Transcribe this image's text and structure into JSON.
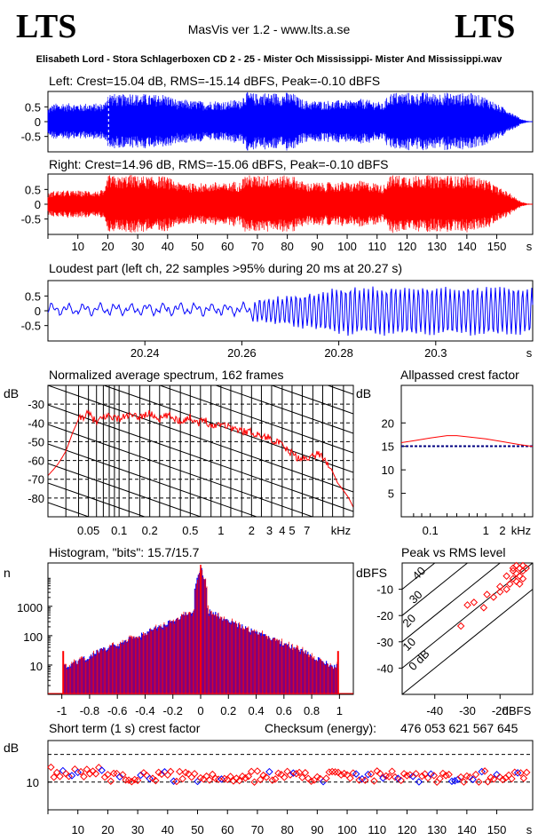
{
  "header": {
    "logo_left": "LTS",
    "logo_right": "LTS",
    "version": "MasVis ver 1.2 - www.lts.a.se",
    "filename": "Elisabeth Lord - Stora Schlagerboxen CD 2 - 25 - Mister Och Mississippi- Mister And Mississippi.wav"
  },
  "colors": {
    "left": "#0000ff",
    "right": "#ff0000",
    "dash": "#000080",
    "axis": "#000000"
  },
  "chart_data": [
    {
      "id": "left",
      "type": "area",
      "title": "Left: Crest=15.04 dB, RMS=-15.14 dBFS, Peak=-0.10 dBFS",
      "ylim": [
        -1,
        1
      ],
      "yticks": [
        "0.5",
        "0",
        "-0.5"
      ],
      "xlim": [
        0,
        162
      ],
      "envelope_t": [
        0,
        1,
        2,
        3,
        4,
        5,
        6,
        7,
        8,
        9,
        10,
        11,
        12,
        13,
        14,
        15,
        16,
        17,
        18,
        19,
        20,
        22,
        24,
        26,
        28,
        30,
        32,
        34,
        36,
        38,
        40,
        42,
        44,
        46,
        48,
        50,
        52,
        54,
        56,
        58,
        60,
        62,
        64,
        66,
        68,
        70,
        72,
        74,
        76,
        78,
        80,
        82,
        84,
        86,
        88,
        90,
        92,
        94,
        96,
        98,
        100,
        102,
        104,
        106,
        108,
        110,
        112,
        114,
        116,
        118,
        120,
        122,
        124,
        126,
        128,
        130,
        132,
        134,
        136,
        138,
        140,
        142,
        144,
        146,
        148,
        150,
        152,
        154,
        156,
        158,
        160,
        162
      ],
      "envelope": [
        0.45,
        0.55,
        0.6,
        0.62,
        0.58,
        0.65,
        0.6,
        0.62,
        0.66,
        0.6,
        0.62,
        0.58,
        0.6,
        0.64,
        0.62,
        0.6,
        0.62,
        0.6,
        0.64,
        0.62,
        1.0,
        0.95,
        0.9,
        0.95,
        1.0,
        0.92,
        0.95,
        0.9,
        0.92,
        0.95,
        0.9,
        0.8,
        0.7,
        0.75,
        0.7,
        0.72,
        0.68,
        0.7,
        0.72,
        0.7,
        0.68,
        0.75,
        0.72,
        1.0,
        0.98,
        0.95,
        1.0,
        0.97,
        0.98,
        0.95,
        1.0,
        0.96,
        0.8,
        0.72,
        0.7,
        0.72,
        0.7,
        0.72,
        0.7,
        0.75,
        0.72,
        0.7,
        0.78,
        0.75,
        0.72,
        0.7,
        0.6,
        0.95,
        1.0,
        0.98,
        1.0,
        0.95,
        0.98,
        1.0,
        0.96,
        0.95,
        1.0,
        0.98,
        0.95,
        0.96,
        1.0,
        0.95,
        0.9,
        0.85,
        0.75,
        0.6,
        0.5,
        0.4,
        0.25,
        0.1,
        0.03,
        0.0
      ]
    },
    {
      "id": "right",
      "type": "area",
      "title": "Right: Crest=14.96 dB, RMS=-15.06 dBFS, Peak=-0.10 dBFS",
      "ylim": [
        -1,
        1
      ],
      "yticks": [
        "0.5",
        "0",
        "-0.5"
      ],
      "xlim": [
        0,
        162
      ],
      "xticks": [
        10,
        20,
        30,
        40,
        50,
        60,
        70,
        80,
        90,
        100,
        110,
        120,
        130,
        140,
        150
      ],
      "xunit": "s",
      "envelope_t": [
        0,
        1,
        2,
        3,
        4,
        5,
        6,
        7,
        8,
        9,
        10,
        11,
        12,
        13,
        14,
        15,
        16,
        17,
        18,
        19,
        20,
        22,
        24,
        26,
        28,
        30,
        32,
        34,
        36,
        38,
        40,
        42,
        44,
        46,
        48,
        50,
        52,
        54,
        56,
        58,
        60,
        62,
        64,
        66,
        68,
        70,
        72,
        74,
        76,
        78,
        80,
        82,
        84,
        86,
        88,
        90,
        92,
        94,
        96,
        98,
        100,
        102,
        104,
        106,
        108,
        110,
        112,
        114,
        116,
        118,
        120,
        122,
        124,
        126,
        128,
        130,
        132,
        134,
        136,
        138,
        140,
        142,
        144,
        146,
        148,
        150,
        152,
        154,
        156,
        158,
        160,
        162
      ],
      "envelope": [
        0.35,
        0.42,
        0.45,
        0.48,
        0.44,
        0.46,
        0.45,
        0.48,
        0.46,
        0.45,
        0.47,
        0.44,
        0.45,
        0.48,
        0.46,
        0.45,
        0.46,
        0.44,
        0.48,
        0.45,
        1.0,
        0.96,
        0.92,
        0.98,
        1.0,
        0.95,
        0.96,
        0.92,
        0.95,
        0.96,
        0.92,
        0.82,
        0.72,
        0.78,
        0.7,
        0.74,
        0.7,
        0.72,
        0.75,
        0.72,
        0.7,
        0.78,
        0.74,
        1.0,
        0.98,
        0.96,
        1.0,
        0.98,
        0.98,
        0.95,
        1.0,
        0.96,
        0.82,
        0.74,
        0.72,
        0.75,
        0.72,
        0.75,
        0.72,
        0.78,
        0.74,
        0.72,
        0.8,
        0.76,
        0.74,
        0.72,
        0.62,
        0.96,
        1.0,
        0.98,
        1.0,
        0.96,
        0.98,
        1.0,
        0.97,
        0.95,
        1.0,
        0.98,
        0.95,
        0.96,
        1.0,
        0.95,
        0.9,
        0.85,
        0.75,
        0.6,
        0.5,
        0.4,
        0.25,
        0.1,
        0.03,
        0.0
      ]
    },
    {
      "id": "loudest",
      "type": "line",
      "title": "Loudest part (left  ch, 22 samples >95% during 20 ms at 20.27 s)",
      "ylim": [
        -1,
        1
      ],
      "yticks": [
        "0.5",
        "0",
        "-0.5"
      ],
      "xlim": [
        20.22,
        20.32
      ],
      "xticks": [
        "20.24",
        "20.26",
        "20.28",
        "20.3"
      ],
      "xunit": "s"
    },
    {
      "id": "spectrum",
      "type": "line",
      "title": "Normalized average spectrum, 162 frames",
      "ylabel": "dB",
      "yticks": [
        "-30",
        "-40",
        "-50",
        "-60",
        "-70",
        "-80"
      ],
      "ylim": [
        -90,
        -20
      ],
      "xscale": "log",
      "xlim": [
        0.02,
        20
      ],
      "xticks": [
        "0.05",
        "0.1",
        "0.2",
        "0.5",
        "1",
        "2",
        "3",
        "4",
        "5",
        "7"
      ],
      "xunit": "kHz",
      "freq_khz": [
        0.02,
        0.025,
        0.03,
        0.035,
        0.04,
        0.05,
        0.06,
        0.07,
        0.08,
        0.1,
        0.12,
        0.15,
        0.2,
        0.25,
        0.3,
        0.4,
        0.5,
        0.6,
        0.7,
        0.8,
        1,
        1.2,
        1.5,
        2,
        2.5,
        3,
        3.5,
        4,
        4.5,
        5,
        6,
        7,
        8,
        9,
        10,
        12,
        14,
        16,
        18,
        20
      ],
      "level_db": [
        -68,
        -62,
        -55,
        -45,
        -38,
        -35,
        -40,
        -37,
        -36,
        -38,
        -36,
        -37,
        -35,
        -38,
        -36,
        -39,
        -37,
        -40,
        -38,
        -42,
        -40,
        -42,
        -44,
        -45,
        -47,
        -48,
        -50,
        -52,
        -55,
        -56,
        -60,
        -58,
        -58,
        -56,
        -58,
        -64,
        -72,
        -76,
        -80,
        -85
      ]
    },
    {
      "id": "allpass",
      "type": "line",
      "title": "Allpassed crest factor",
      "ylabel": "dB",
      "yticks": [
        "20",
        "15",
        "10",
        "5"
      ],
      "ylim": [
        0,
        28
      ],
      "xscale": "log",
      "xlim": [
        0.03,
        7
      ],
      "xticks": [
        "0.1",
        "1",
        "2",
        "kHz"
      ],
      "freq_khz": [
        0.03,
        0.05,
        0.1,
        0.2,
        0.3,
        0.5,
        1,
        2,
        4,
        7
      ],
      "crest_db": [
        15.8,
        16.2,
        16.8,
        17.3,
        17.3,
        17.0,
        16.6,
        16.0,
        15.4,
        15.0
      ],
      "reference_db": 15.04
    },
    {
      "id": "histogram",
      "type": "line",
      "title": "Histogram, \"bits\": 15.7/15.7",
      "ylabel": "n",
      "yscale": "log",
      "yticks": [
        "1000",
        "100",
        "10"
      ],
      "ylim": [
        1,
        30000
      ],
      "xlim": [
        -1.1,
        1.1
      ],
      "xticks": [
        "-1",
        "-0.8",
        "-0.6",
        "-0.4",
        "-0.2",
        "0",
        "0.2",
        "0.4",
        "0.6",
        "0.8",
        "1"
      ],
      "x": [
        -1,
        -0.95,
        -0.8,
        -0.6,
        -0.4,
        -0.2,
        -0.05,
        0,
        0.05,
        0.2,
        0.4,
        0.6,
        0.8,
        0.95,
        1
      ],
      "n": [
        10,
        8,
        20,
        50,
        120,
        300,
        700,
        20000,
        700,
        300,
        120,
        50,
        20,
        8,
        10
      ]
    },
    {
      "id": "peak_rms",
      "type": "scatter",
      "title": "Peak vs RMS level",
      "ylabel": "dBFS",
      "xlabel": "dBFS",
      "xlim": [
        -50,
        -10
      ],
      "ylim": [
        -50,
        0
      ],
      "xticks": [
        "-40",
        "-30",
        "-20"
      ],
      "yticks": [
        "-10",
        "-20",
        "-30",
        "-40"
      ],
      "crest_lines": [
        "0 dB",
        "10",
        "20",
        "30",
        "40"
      ],
      "points": [
        [
          -12,
          -2
        ],
        [
          -13,
          -3
        ],
        [
          -14,
          -2
        ],
        [
          -15,
          -4
        ],
        [
          -16,
          -3
        ],
        [
          -14,
          -5
        ],
        [
          -13,
          -6
        ],
        [
          -15,
          -7
        ],
        [
          -16,
          -6
        ],
        [
          -17,
          -8
        ],
        [
          -18,
          -10
        ],
        [
          -20,
          -9
        ],
        [
          -22,
          -13
        ],
        [
          -24,
          -12
        ],
        [
          -28,
          -15
        ],
        [
          -30,
          -16
        ],
        [
          -32,
          -24
        ],
        [
          -25,
          -17
        ],
        [
          -20,
          -11
        ],
        [
          -18,
          -5
        ],
        [
          -15,
          -1
        ],
        [
          -13,
          -1
        ],
        [
          -16,
          -2
        ],
        [
          -14,
          -8
        ]
      ]
    },
    {
      "id": "short_term",
      "type": "scatter",
      "title": "Short term (1 s) crest factor",
      "ylabel": "dB",
      "yticks": [
        "10"
      ],
      "xlim": [
        0,
        162
      ],
      "xticks": [
        "10",
        "20",
        "30",
        "40",
        "50",
        "60",
        "70",
        "80",
        "90",
        "100",
        "110",
        "120",
        "130",
        "140",
        "150",
        "s"
      ],
      "checksum_label": "Checksum (energy):",
      "checksum_value": "476 053 621 567 645"
    }
  ]
}
